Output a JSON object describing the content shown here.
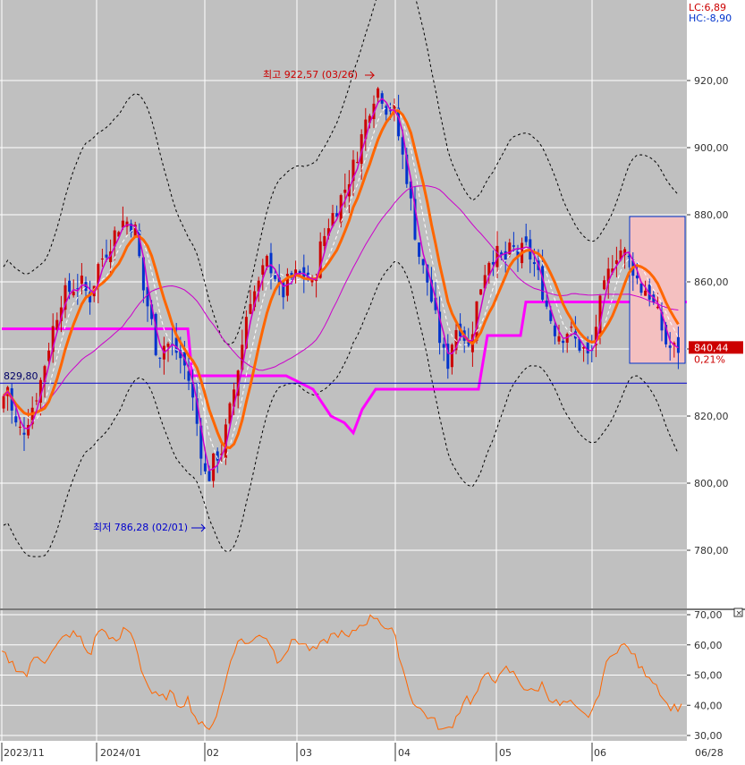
{
  "chart_data": [
    {
      "type": "candlestick",
      "xlabel": "",
      "ylabel": "",
      "x_ticks": [
        "2023/11",
        "2024/01",
        "02",
        "03",
        "04",
        "05",
        "06",
        "06/28"
      ],
      "y_ticks": [
        "780,00",
        "800,00",
        "820,00",
        "840,00",
        "860,00",
        "880,00",
        "900,00",
        "920,00"
      ],
      "ylim": [
        765,
        935
      ],
      "grid": true,
      "header": {
        "lc": "LC:6,89",
        "hc": "HC:-8,90"
      },
      "max_marker": {
        "label": "최고 922,57 (03/26)",
        "value": 922.57,
        "date": "03/26"
      },
      "min_marker": {
        "label": "최저 786,28 (02/01)",
        "value": 786.28,
        "date": "02/01"
      },
      "left_level_label": "829,80",
      "last_price": {
        "label": "840,44",
        "value": 840.44
      },
      "change_label": "0,21%",
      "colors": {
        "up": "#cc0000",
        "down": "#0033cc",
        "ma_short": "#cc00cc",
        "ma_mid": "#ff6600",
        "ma_long": "#cc00cc",
        "bands": "#000000",
        "background": "#c0c0c0",
        "highlight": "#f4c0c0"
      },
      "anchor_points": [
        [
          0,
          822
        ],
        [
          8,
          830
        ],
        [
          15,
          818
        ],
        [
          25,
          815
        ],
        [
          35,
          822
        ],
        [
          45,
          830
        ],
        [
          58,
          845
        ],
        [
          68,
          855
        ],
        [
          80,
          858
        ],
        [
          90,
          860
        ],
        [
          100,
          855
        ],
        [
          110,
          865
        ],
        [
          120,
          870
        ],
        [
          135,
          878
        ],
        [
          145,
          878
        ],
        [
          152,
          875
        ],
        [
          160,
          858
        ],
        [
          168,
          850
        ],
        [
          176,
          838
        ],
        [
          185,
          842
        ],
        [
          195,
          840
        ],
        [
          205,
          836
        ],
        [
          212,
          830
        ],
        [
          220,
          818
        ],
        [
          226,
          808
        ],
        [
          231,
          800
        ],
        [
          236,
          804
        ],
        [
          241,
          808
        ],
        [
          248,
          810
        ],
        [
          256,
          820
        ],
        [
          263,
          830
        ],
        [
          270,
          840
        ],
        [
          278,
          855
        ],
        [
          288,
          858
        ],
        [
          298,
          866
        ],
        [
          306,
          864
        ],
        [
          314,
          855
        ],
        [
          322,
          860
        ],
        [
          332,
          862
        ],
        [
          342,
          862
        ],
        [
          350,
          858
        ],
        [
          358,
          870
        ],
        [
          368,
          878
        ],
        [
          376,
          882
        ],
        [
          386,
          888
        ],
        [
          396,
          895
        ],
        [
          406,
          905
        ],
        [
          416,
          915
        ],
        [
          424,
          918
        ],
        [
          432,
          912
        ],
        [
          440,
          912
        ],
        [
          448,
          900
        ],
        [
          456,
          890
        ],
        [
          462,
          878
        ],
        [
          470,
          866
        ],
        [
          478,
          860
        ],
        [
          486,
          850
        ],
        [
          494,
          840
        ],
        [
          500,
          835
        ],
        [
          506,
          843
        ],
        [
          512,
          848
        ],
        [
          518,
          845
        ],
        [
          524,
          840
        ],
        [
          532,
          852
        ],
        [
          540,
          862
        ],
        [
          548,
          868
        ],
        [
          556,
          868
        ],
        [
          564,
          866
        ],
        [
          572,
          870
        ],
        [
          580,
          868
        ],
        [
          588,
          870
        ],
        [
          596,
          866
        ],
        [
          604,
          860
        ],
        [
          612,
          852
        ],
        [
          620,
          846
        ],
        [
          628,
          844
        ],
        [
          636,
          846
        ],
        [
          644,
          842
        ],
        [
          652,
          840
        ],
        [
          660,
          836
        ],
        [
          668,
          850
        ],
        [
          676,
          858
        ],
        [
          684,
          866
        ],
        [
          692,
          870
        ],
        [
          700,
          868
        ],
        [
          708,
          864
        ],
        [
          716,
          858
        ],
        [
          724,
          858
        ],
        [
          732,
          852
        ],
        [
          738,
          848
        ],
        [
          744,
          842
        ],
        [
          750,
          840
        ],
        [
          756,
          840
        ],
        [
          762,
          840.44
        ]
      ],
      "oscillator": {
        "y_ticks": [
          "30,00",
          "40,00",
          "50,00",
          "60,00",
          "70,00"
        ],
        "ylim": [
          28,
          72
        ],
        "anchor_points": [
          [
            0,
            58
          ],
          [
            10,
            55
          ],
          [
            20,
            52
          ],
          [
            30,
            50
          ],
          [
            40,
            57
          ],
          [
            50,
            55
          ],
          [
            60,
            58
          ],
          [
            70,
            62
          ],
          [
            80,
            64
          ],
          [
            90,
            62
          ],
          [
            100,
            56
          ],
          [
            110,
            65
          ],
          [
            120,
            64
          ],
          [
            130,
            60
          ],
          [
            140,
            66
          ],
          [
            150,
            62
          ],
          [
            160,
            50
          ],
          [
            170,
            44
          ],
          [
            180,
            42
          ],
          [
            190,
            44
          ],
          [
            200,
            40
          ],
          [
            210,
            42
          ],
          [
            220,
            35
          ],
          [
            230,
            32
          ],
          [
            240,
            35
          ],
          [
            250,
            45
          ],
          [
            260,
            58
          ],
          [
            270,
            62
          ],
          [
            280,
            60
          ],
          [
            290,
            64
          ],
          [
            300,
            62
          ],
          [
            310,
            55
          ],
          [
            320,
            58
          ],
          [
            330,
            62
          ],
          [
            340,
            60
          ],
          [
            350,
            58
          ],
          [
            360,
            60
          ],
          [
            370,
            63
          ],
          [
            380,
            64
          ],
          [
            390,
            62
          ],
          [
            400,
            66
          ],
          [
            410,
            68
          ],
          [
            420,
            70
          ],
          [
            430,
            66
          ],
          [
            440,
            64
          ],
          [
            448,
            55
          ],
          [
            456,
            46
          ],
          [
            464,
            40
          ],
          [
            472,
            38
          ],
          [
            480,
            36
          ],
          [
            488,
            34
          ],
          [
            496,
            31
          ],
          [
            504,
            33
          ],
          [
            512,
            37
          ],
          [
            520,
            43
          ],
          [
            528,
            41
          ],
          [
            536,
            46
          ],
          [
            546,
            51
          ],
          [
            556,
            48
          ],
          [
            566,
            52
          ],
          [
            576,
            50
          ],
          [
            586,
            46
          ],
          [
            596,
            44
          ],
          [
            606,
            47
          ],
          [
            616,
            42
          ],
          [
            626,
            40
          ],
          [
            636,
            41
          ],
          [
            646,
            38
          ],
          [
            656,
            36
          ],
          [
            666,
            40
          ],
          [
            676,
            52
          ],
          [
            686,
            58
          ],
          [
            696,
            60
          ],
          [
            706,
            58
          ],
          [
            716,
            52
          ],
          [
            726,
            50
          ],
          [
            736,
            46
          ],
          [
            746,
            40
          ],
          [
            756,
            39
          ],
          [
            762,
            40
          ]
        ]
      }
    }
  ]
}
